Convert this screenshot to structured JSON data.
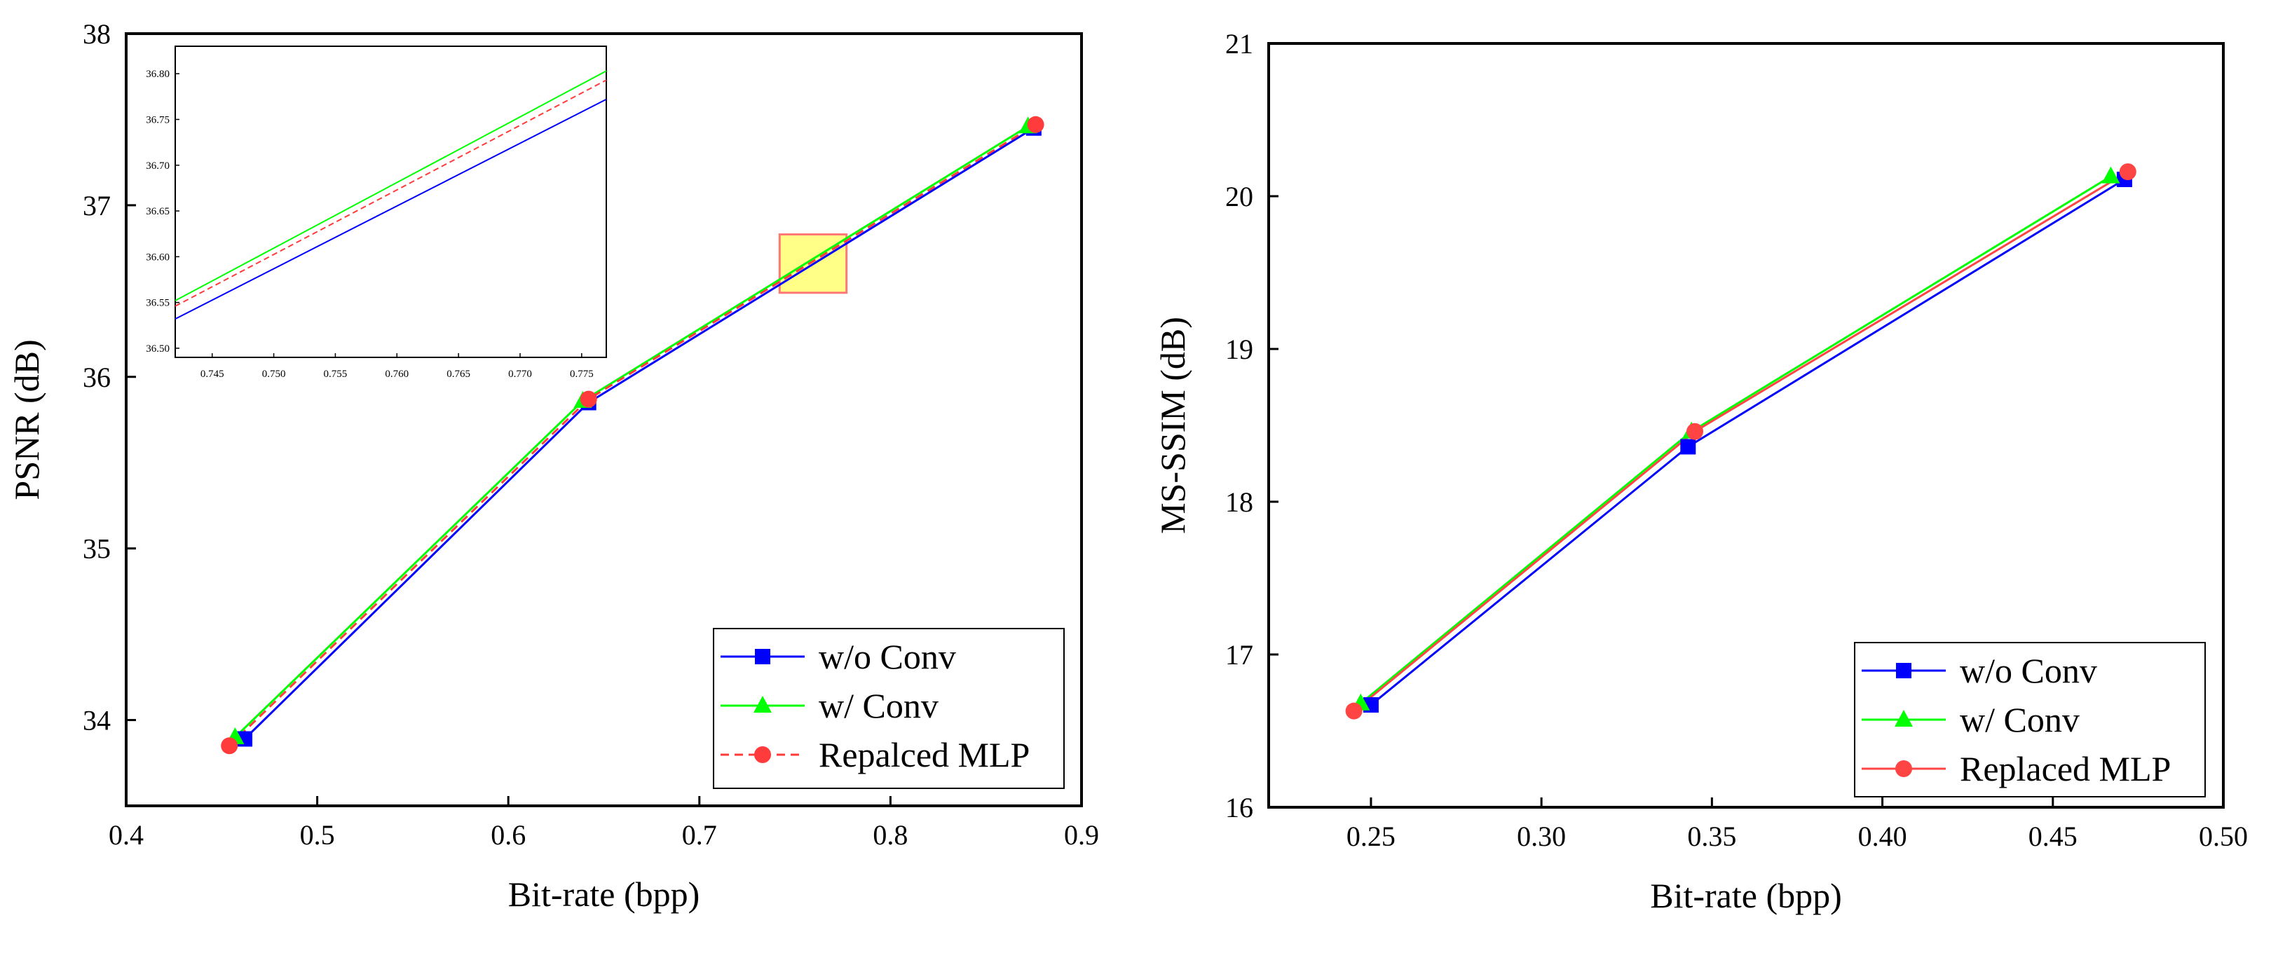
{
  "chart_data": [
    {
      "type": "line",
      "xlabel": "Bit-rate (bpp)",
      "ylabel": "PSNR (dB)",
      "xlim": [
        0.4,
        0.9
      ],
      "ylim": [
        33.5,
        38
      ],
      "xticks": [
        0.4,
        0.5,
        0.6,
        0.7,
        0.8,
        0.9
      ],
      "xtick_labels": [
        "0.4",
        "0.5",
        "0.6",
        "0.7",
        "0.8",
        "0.9"
      ],
      "yticks": [
        34,
        35,
        36,
        37,
        38
      ],
      "ytick_labels": [
        "34",
        "35",
        "36",
        "37",
        "38"
      ],
      "legend_position": "bottom-right",
      "series": [
        {
          "name": "w/o Conv",
          "color": "#0000ff",
          "marker": "square",
          "dash": "solid",
          "x": [
            0.462,
            0.642,
            0.875
          ],
          "y": [
            33.89,
            35.85,
            37.45
          ]
        },
        {
          "name": "w/ Conv",
          "color": "#00ff00",
          "marker": "triangle",
          "dash": "solid",
          "x": [
            0.457,
            0.639,
            0.872
          ],
          "y": [
            33.9,
            35.86,
            37.46
          ]
        },
        {
          "name": "Repalced MLP",
          "color": "#ff3b3b",
          "marker": "circle",
          "dash": "dashed",
          "x": [
            0.454,
            0.642,
            0.876
          ],
          "y": [
            33.85,
            35.87,
            37.47
          ]
        }
      ],
      "zoom_box": {
        "x": [
          0.742,
          0.777
        ],
        "y": [
          36.49,
          36.83
        ],
        "color": "#ffff88",
        "border": "#ff7777"
      },
      "inset": {
        "xlim": [
          0.742,
          0.777
        ],
        "ylim": [
          36.49,
          36.83
        ],
        "xticks": [
          0.745,
          0.75,
          0.755,
          0.76,
          0.765,
          0.77,
          0.775
        ],
        "xtick_labels": [
          "0.745",
          "0.750",
          "0.755",
          "0.760",
          "0.765",
          "0.770",
          "0.775"
        ],
        "yticks": [
          36.5,
          36.55,
          36.6,
          36.65,
          36.7,
          36.75,
          36.8
        ],
        "ytick_labels": [
          "36.50",
          "36.55",
          "36.60",
          "36.65",
          "36.70",
          "36.75",
          "36.80"
        ],
        "series": [
          {
            "name": "w/o Conv",
            "color": "#0000ff",
            "dash": "solid",
            "x": [
              0.742,
              0.777
            ],
            "y": [
              36.532,
              36.772
            ]
          },
          {
            "name": "w/ Conv",
            "color": "#00ff00",
            "dash": "solid",
            "x": [
              0.742,
              0.777
            ],
            "y": [
              36.552,
              36.803
            ]
          },
          {
            "name": "Repalced MLP",
            "color": "#ff3b3b",
            "dash": "dashed",
            "x": [
              0.742,
              0.777
            ],
            "y": [
              36.546,
              36.793
            ]
          }
        ]
      }
    },
    {
      "type": "line",
      "xlabel": "Bit-rate (bpp)",
      "ylabel": "MS-SSIM (dB)",
      "xlim": [
        0.22,
        0.5
      ],
      "ylim": [
        16,
        21
      ],
      "xticks": [
        0.25,
        0.3,
        0.35,
        0.4,
        0.45,
        0.5
      ],
      "xtick_labels": [
        "0.25",
        "0.30",
        "0.35",
        "0.40",
        "0.45",
        "0.50"
      ],
      "yticks": [
        16,
        17,
        18,
        19,
        20,
        21
      ],
      "ytick_labels": [
        "16",
        "17",
        "18",
        "19",
        "20",
        "21"
      ],
      "legend_position": "bottom-right",
      "series": [
        {
          "name": "w/o Conv",
          "color": "#0000ff",
          "marker": "square",
          "dash": "solid",
          "x": [
            0.25,
            0.343,
            0.471
          ],
          "y": [
            16.67,
            18.36,
            20.11
          ]
        },
        {
          "name": "w/ Conv",
          "color": "#00ff00",
          "marker": "triangle",
          "dash": "solid",
          "x": [
            0.247,
            0.344,
            0.467
          ],
          "y": [
            16.68,
            18.46,
            20.13
          ]
        },
        {
          "name": "Replaced MLP",
          "color": "#ff4444",
          "marker": "circle",
          "dash": "solid",
          "x": [
            0.245,
            0.345,
            0.472
          ],
          "y": [
            16.63,
            18.46,
            20.16
          ]
        }
      ]
    }
  ]
}
